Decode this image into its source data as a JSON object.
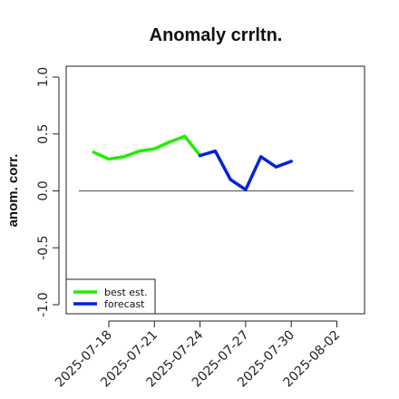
{
  "chart_data": {
    "type": "line",
    "title": "Anomaly crrltn.",
    "ylabel": "anom. corr.",
    "xlabel": "",
    "ylim": [
      -1.0,
      1.0
    ],
    "yticks": [
      "-1.0",
      "-0.5",
      "0.0",
      "0.5",
      "1.0"
    ],
    "x_tick_labels": [
      "2025-07-18",
      "2025-07-21",
      "2025-07-24",
      "2025-07-27",
      "2025-07-30",
      "2025-08-02"
    ],
    "highlighted_tick": "2025-07-24",
    "highlight_color": "#2e8b2e",
    "grid": false,
    "reference_line": 0.0,
    "legend_position": "bottom-left",
    "series": [
      {
        "name": "best est.",
        "color": "#22ee00",
        "x": [
          "2025-07-17",
          "2025-07-18",
          "2025-07-19",
          "2025-07-20",
          "2025-07-21",
          "2025-07-22",
          "2025-07-23",
          "2025-07-24"
        ],
        "values": [
          0.34,
          0.28,
          0.3,
          0.35,
          0.37,
          0.43,
          0.48,
          0.31
        ]
      },
      {
        "name": "forecast",
        "color": "#0022dd",
        "x": [
          "2025-07-24",
          "2025-07-25",
          "2025-07-26",
          "2025-07-27",
          "2025-07-28",
          "2025-07-29",
          "2025-07-30"
        ],
        "values": [
          0.31,
          0.35,
          0.1,
          0.01,
          0.3,
          0.21,
          0.26
        ]
      }
    ]
  }
}
